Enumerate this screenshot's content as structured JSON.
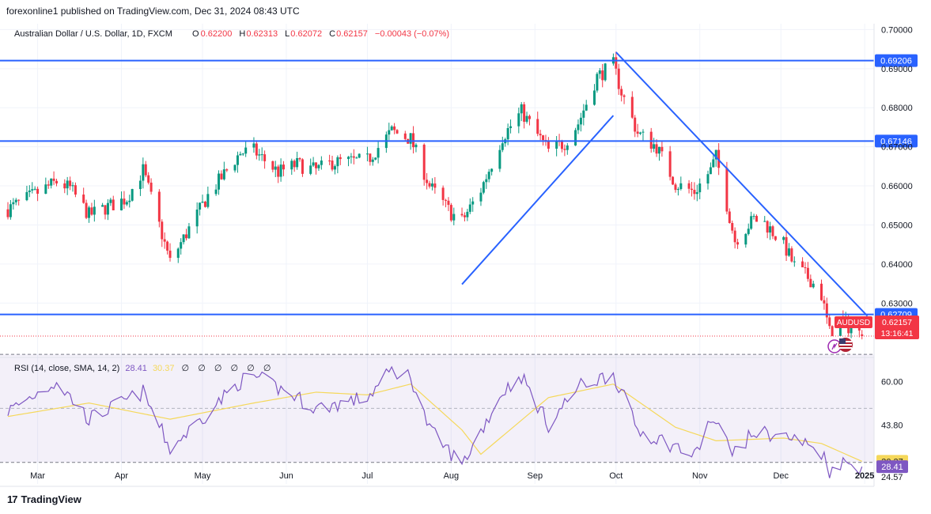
{
  "header": {
    "published": "forexonline1 published on TradingView.com, Dec 31, 2024 08:43 UTC"
  },
  "legend": {
    "symbol": "Australian Dollar / U.S. Dollar, 1D, FXCM",
    "o_label": "O",
    "o": "0.62200",
    "h_label": "H",
    "h": "0.62313",
    "l_label": "L",
    "l": "0.62072",
    "c_label": "C",
    "c": "0.62157",
    "change": "−0.00043 (−0.07%)"
  },
  "rsi_legend": {
    "label": "RSI (14, close, SMA, 14, 2)",
    "rsi_value": "28.41",
    "sma_value": "30.37",
    "placeholders": [
      "∅",
      "∅",
      "∅",
      "∅",
      "∅",
      "∅"
    ]
  },
  "price_badge": {
    "symbol": "AUDUSD",
    "price": "0.62157",
    "countdown": "13:16:41"
  },
  "footer": {
    "brand": "TradingView"
  },
  "colors": {
    "up": "#089981",
    "down": "#f23645",
    "line": "#2962ff",
    "rsi": "#7e57c2",
    "rsi_sma": "#f5d85a",
    "rsi_band": "#7e57c2"
  },
  "chart_data": [
    {
      "type": "candlestick",
      "title": "Australian Dollar / U.S. Dollar, 1D, FXCM",
      "ylim": [
        0.6165,
        0.7015
      ],
      "y_ticks": [
        "0.70000",
        "0.69000",
        "0.68000",
        "0.67000",
        "0.66000",
        "0.65000",
        "0.64000",
        "0.63000"
      ],
      "x_ticks": [
        "Mar",
        "Apr",
        "May",
        "Jun",
        "Jul",
        "Aug",
        "Sep",
        "Oct",
        "Nov",
        "Dec",
        "2025"
      ],
      "horizontal_levels": [
        {
          "label": "0.69206",
          "value": 0.69206
        },
        {
          "label": "0.67146",
          "value": 0.67146
        },
        {
          "label": "0.62709",
          "value": 0.62709
        }
      ],
      "last_price_line": 0.62157,
      "trendlines": [
        {
          "from": {
            "x": "2024-08-05",
            "y": 0.6348
          },
          "to": {
            "x": "2024-09-30",
            "y": 0.678
          }
        },
        {
          "from": {
            "x": "2024-10-01",
            "y": 0.6942
          },
          "to": {
            "x": "2025-01-02",
            "y": 0.6267
          }
        }
      ],
      "anchors": [
        {
          "date": "2024-02-19",
          "close": 0.654
        },
        {
          "date": "2024-03-08",
          "close": 0.661
        },
        {
          "date": "2024-03-13",
          "close": 0.6594
        },
        {
          "date": "2024-03-20",
          "close": 0.6525
        },
        {
          "date": "2024-04-03",
          "close": 0.6568
        },
        {
          "date": "2024-04-09",
          "close": 0.664
        },
        {
          "date": "2024-04-19",
          "close": 0.6405
        },
        {
          "date": "2024-05-03",
          "close": 0.6575
        },
        {
          "date": "2024-05-15",
          "close": 0.6685
        },
        {
          "date": "2024-05-20",
          "close": 0.669
        },
        {
          "date": "2024-05-29",
          "close": 0.6635
        },
        {
          "date": "2024-06-05",
          "close": 0.6655
        },
        {
          "date": "2024-06-12",
          "close": 0.664
        },
        {
          "date": "2024-06-18",
          "close": 0.666
        },
        {
          "date": "2024-07-01",
          "close": 0.6665
        },
        {
          "date": "2024-07-10",
          "close": 0.674
        },
        {
          "date": "2024-07-17",
          "close": 0.672
        },
        {
          "date": "2024-07-24",
          "close": 0.66
        },
        {
          "date": "2024-08-01",
          "close": 0.653
        },
        {
          "date": "2024-08-05",
          "close": 0.651
        },
        {
          "date": "2024-08-12",
          "close": 0.659
        },
        {
          "date": "2024-08-20",
          "close": 0.6725
        },
        {
          "date": "2024-08-27",
          "close": 0.679
        },
        {
          "date": "2024-09-06",
          "close": 0.669
        },
        {
          "date": "2024-09-12",
          "close": 0.671
        },
        {
          "date": "2024-09-17",
          "close": 0.676
        },
        {
          "date": "2024-09-24",
          "close": 0.688
        },
        {
          "date": "2024-09-30",
          "close": 0.691
        },
        {
          "date": "2024-10-03",
          "close": 0.684
        },
        {
          "date": "2024-10-09",
          "close": 0.6735
        },
        {
          "date": "2024-10-16",
          "close": 0.67
        },
        {
          "date": "2024-10-23",
          "close": 0.6605
        },
        {
          "date": "2024-10-30",
          "close": 0.6585
        },
        {
          "date": "2024-11-05",
          "close": 0.664
        },
        {
          "date": "2024-11-07",
          "close": 0.6675
        },
        {
          "date": "2024-11-14",
          "close": 0.646
        },
        {
          "date": "2024-11-21",
          "close": 0.6515
        },
        {
          "date": "2024-11-25",
          "close": 0.6505
        },
        {
          "date": "2024-12-02",
          "close": 0.645
        },
        {
          "date": "2024-12-06",
          "close": 0.6395
        },
        {
          "date": "2024-12-12",
          "close": 0.636
        },
        {
          "date": "2024-12-16",
          "close": 0.632
        },
        {
          "date": "2024-12-19",
          "close": 0.6225
        },
        {
          "date": "2024-12-23",
          "close": 0.6255
        },
        {
          "date": "2024-12-31",
          "close": 0.62157
        }
      ],
      "last_candle": {
        "date": "2024-12-31",
        "open": 0.622,
        "high": 0.62313,
        "low": 0.62072,
        "close": 0.62157
      }
    },
    {
      "type": "line",
      "title": "RSI (14, close, SMA, 14, 2)",
      "ylim": [
        22,
        68
      ],
      "y_ticks": [
        "60.00",
        "43.80",
        "24.57"
      ],
      "bands": [
        70,
        30
      ],
      "series": [
        {
          "name": "RSI",
          "anchors": [
            {
              "date": "2024-02-19",
              "value": 49
            },
            {
              "date": "2024-03-08",
              "value": 60
            },
            {
              "date": "2024-03-20",
              "value": 46
            },
            {
              "date": "2024-04-09",
              "value": 56
            },
            {
              "date": "2024-04-19",
              "value": 35
            },
            {
              "date": "2024-05-15",
              "value": 60
            },
            {
              "date": "2024-05-20",
              "value": 62
            },
            {
              "date": "2024-06-05",
              "value": 54
            },
            {
              "date": "2024-06-12",
              "value": 50
            },
            {
              "date": "2024-07-01",
              "value": 54
            },
            {
              "date": "2024-07-10",
              "value": 64
            },
            {
              "date": "2024-07-17",
              "value": 62
            },
            {
              "date": "2024-07-24",
              "value": 42
            },
            {
              "date": "2024-08-05",
              "value": 29
            },
            {
              "date": "2024-08-20",
              "value": 56
            },
            {
              "date": "2024-08-27",
              "value": 62
            },
            {
              "date": "2024-09-06",
              "value": 44
            },
            {
              "date": "2024-09-17",
              "value": 58
            },
            {
              "date": "2024-09-30",
              "value": 63
            },
            {
              "date": "2024-10-09",
              "value": 42
            },
            {
              "date": "2024-10-23",
              "value": 36
            },
            {
              "date": "2024-10-30",
              "value": 32
            },
            {
              "date": "2024-11-05",
              "value": 46
            },
            {
              "date": "2024-11-14",
              "value": 34
            },
            {
              "date": "2024-11-21",
              "value": 41
            },
            {
              "date": "2024-12-02",
              "value": 40
            },
            {
              "date": "2024-12-12",
              "value": 36
            },
            {
              "date": "2024-12-16",
              "value": 34
            },
            {
              "date": "2024-12-19",
              "value": 27
            },
            {
              "date": "2024-12-23",
              "value": 30
            },
            {
              "date": "2024-12-31",
              "value": 28.41
            }
          ]
        },
        {
          "name": "RSI-based MA",
          "anchors": [
            {
              "date": "2024-02-19",
              "value": 47
            },
            {
              "date": "2024-03-20",
              "value": 52
            },
            {
              "date": "2024-04-19",
              "value": 46
            },
            {
              "date": "2024-05-20",
              "value": 52
            },
            {
              "date": "2024-06-12",
              "value": 56
            },
            {
              "date": "2024-07-01",
              "value": 55
            },
            {
              "date": "2024-07-17",
              "value": 59
            },
            {
              "date": "2024-08-05",
              "value": 42
            },
            {
              "date": "2024-08-12",
              "value": 33
            },
            {
              "date": "2024-09-06",
              "value": 54
            },
            {
              "date": "2024-09-30",
              "value": 59
            },
            {
              "date": "2024-10-23",
              "value": 43
            },
            {
              "date": "2024-11-07",
              "value": 38
            },
            {
              "date": "2024-12-02",
              "value": 39
            },
            {
              "date": "2024-12-16",
              "value": 37
            },
            {
              "date": "2024-12-31",
              "value": 30.37
            }
          ]
        }
      ]
    }
  ]
}
